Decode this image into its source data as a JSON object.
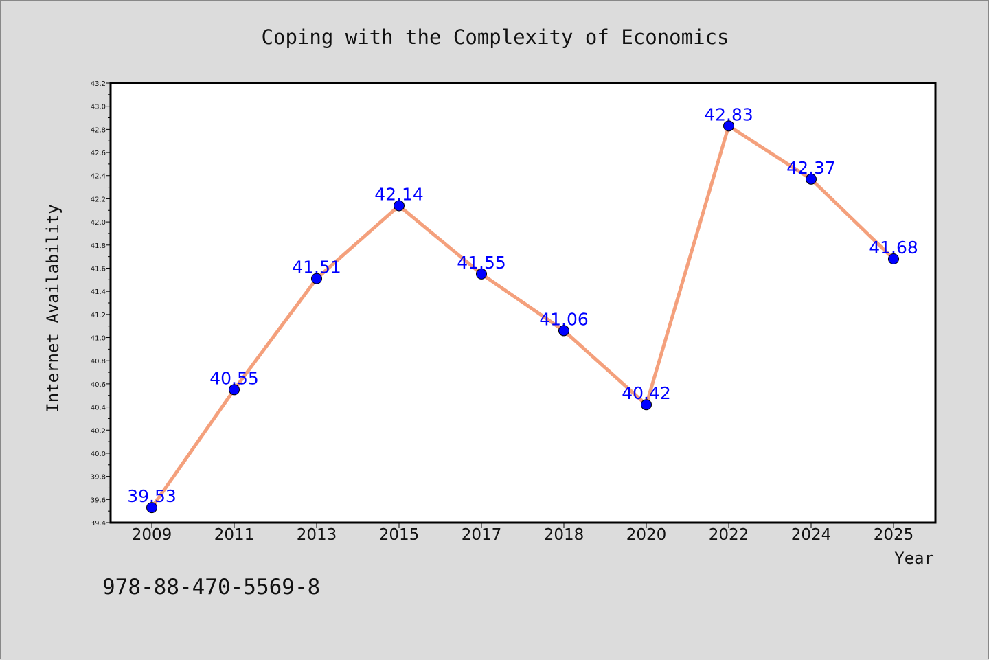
{
  "footer_text": "978-88-470-5569-8",
  "colors": {
    "line": "#f4a07c",
    "marker": "#0000ff",
    "label": "#0000ff",
    "background": "#dcdcdc",
    "plot_bg": "#ffffff"
  },
  "chart_data": {
    "type": "line",
    "title": "Coping with the Complexity of Economics",
    "xlabel": "Year",
    "ylabel": "Internet Availability",
    "categories": [
      "2009",
      "2011",
      "2013",
      "2015",
      "2017",
      "2018",
      "2020",
      "2022",
      "2024",
      "2025"
    ],
    "series": [
      {
        "values": [
          39.53,
          40.55,
          41.51,
          42.14,
          41.55,
          41.06,
          40.42,
          42.83,
          42.37,
          41.68
        ]
      }
    ],
    "data_labels": [
      "39.53",
      "40.55",
      "41.51",
      "42.14",
      "41.55",
      "41.06",
      "40.42",
      "42.83",
      "42.37",
      "41.68"
    ],
    "ylim": [
      39.4,
      43.2
    ],
    "yticks": [
      "39.4",
      "39.6",
      "39.8",
      "40.0",
      "40.2",
      "40.4",
      "40.6",
      "40.8",
      "41.0",
      "41.2",
      "41.4",
      "41.6",
      "41.8",
      "42.0",
      "42.2",
      "42.4",
      "42.6",
      "42.8",
      "43.0",
      "43.2"
    ],
    "grid": false,
    "legend": "none"
  }
}
